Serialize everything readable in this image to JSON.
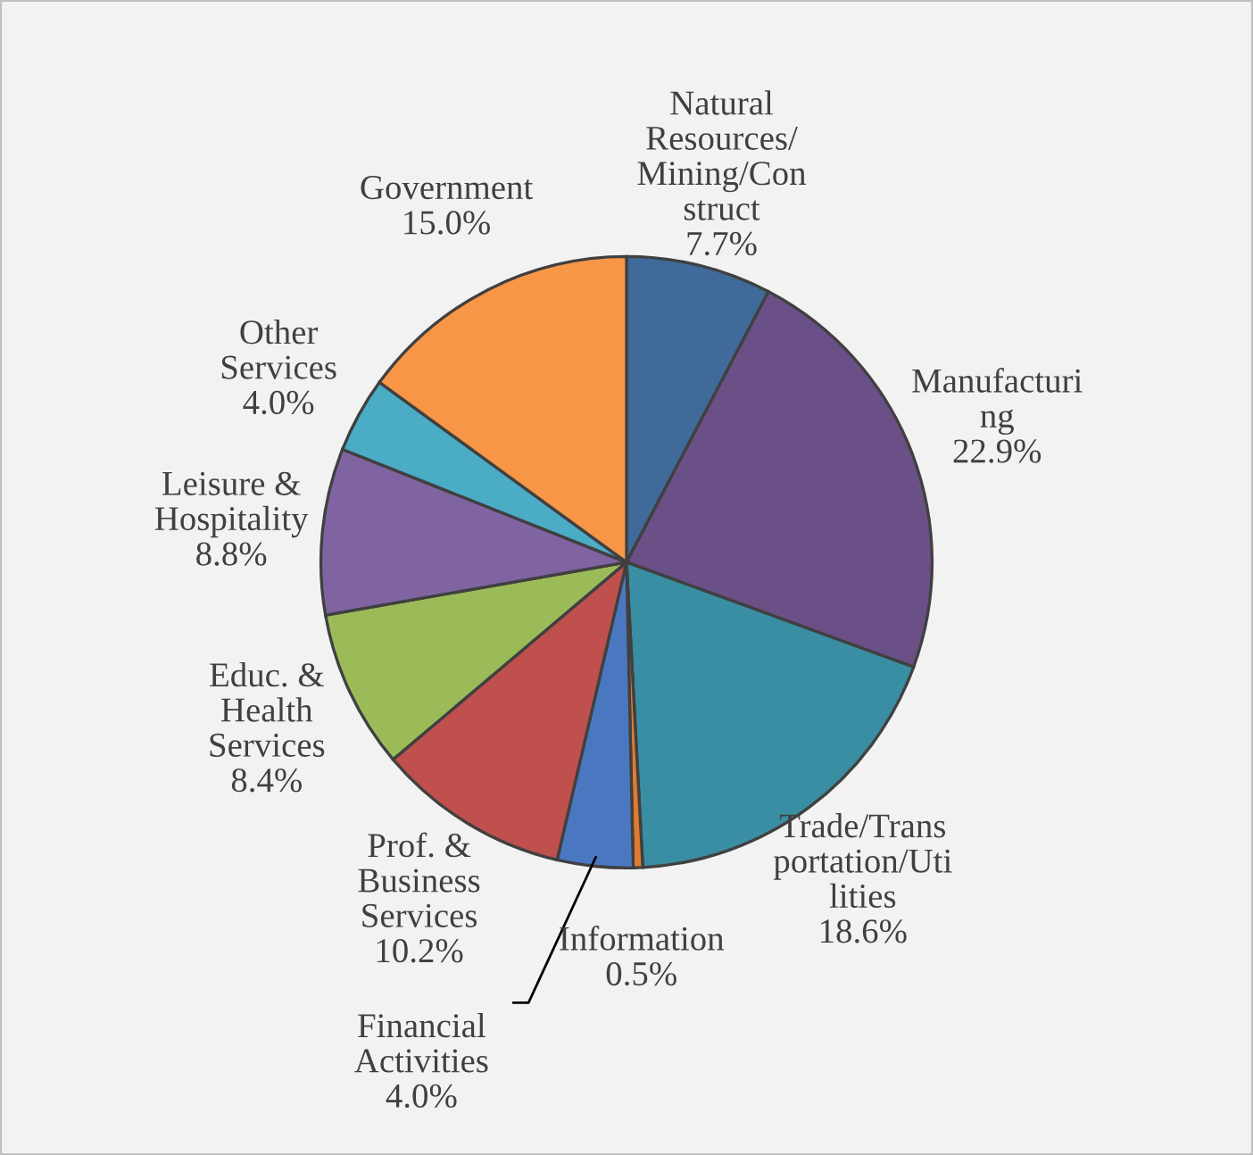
{
  "chart_data": {
    "type": "pie",
    "categories": [
      "Natural\nResources/\nMining/Con\nstruct",
      "Manufacturi\nng",
      "Trade/Trans\nportation/Uti\nlities",
      "Information",
      "Financial\nActivities",
      "Prof. &\nBusiness\nServices",
      "Educ. &\nHealth\nServices",
      "Leisure &\nHospitality",
      "Other\nServices",
      "Government"
    ],
    "values": [
      7.7,
      22.9,
      18.6,
      0.5,
      4.0,
      10.2,
      8.4,
      8.8,
      4.0,
      15.0
    ],
    "value_labels": [
      "7.7%",
      "22.9%",
      "18.6%",
      "0.5%",
      "4.0%",
      "10.2%",
      "8.4%",
      "8.8%",
      "4.0%",
      "15.0%"
    ],
    "colors": [
      "#3f6a9a",
      "#6a5087",
      "#3a8ea3",
      "#e07a2e",
      "#4a78c0",
      "#c0504d",
      "#9bbb59",
      "#8064a2",
      "#4bacc6",
      "#f79646"
    ],
    "legend": false
  }
}
